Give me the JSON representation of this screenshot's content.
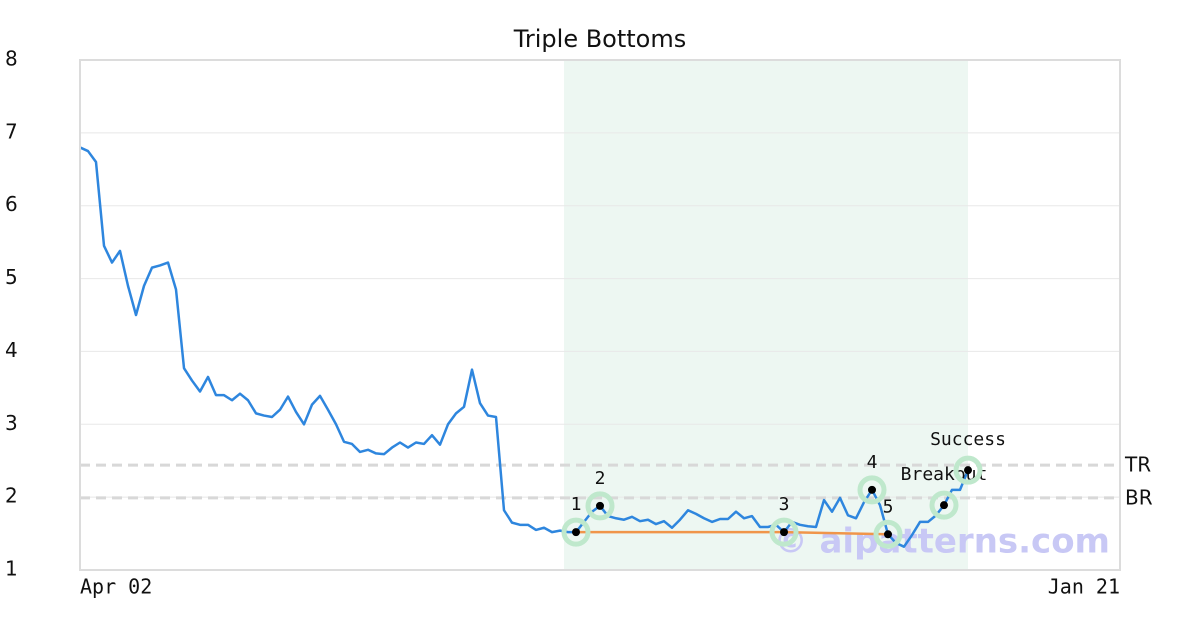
{
  "chart_data": {
    "type": "line",
    "title": "Triple Bottoms",
    "categories": [
      "Apr 02",
      null,
      null,
      null,
      null,
      null,
      null,
      null,
      null,
      null,
      null,
      null,
      null,
      null,
      null,
      null,
      null,
      null,
      null,
      null,
      null,
      null,
      null,
      null,
      null,
      null,
      null,
      null,
      null,
      null,
      null,
      null,
      null,
      null,
      null,
      null,
      null,
      null,
      null,
      null,
      null,
      null,
      null,
      null,
      null,
      null,
      null,
      null,
      null,
      null,
      null,
      null,
      null,
      null,
      null,
      null,
      null,
      null,
      null,
      null,
      null,
      null,
      null,
      null,
      null,
      null,
      null,
      null,
      null,
      null,
      null,
      null,
      null,
      null,
      null,
      null,
      null,
      null,
      null,
      null,
      null,
      null,
      null,
      null,
      null,
      null,
      null,
      null,
      null,
      null,
      null,
      null,
      null,
      null,
      null,
      null,
      null,
      null,
      null,
      null,
      null,
      null,
      null,
      null,
      null,
      null,
      null,
      null,
      null,
      null,
      null,
      null,
      null,
      null,
      null,
      null,
      null,
      null,
      null,
      null,
      null,
      null,
      null,
      null,
      null,
      null,
      null,
      null,
      null,
      null,
      "Jan 21"
    ],
    "series": [
      {
        "color": "#2e86de",
        "values": [
          6.8,
          6.75,
          6.6,
          5.45,
          5.22,
          5.38,
          4.9,
          4.5,
          4.9,
          5.15,
          5.18,
          5.22,
          4.85,
          3.77,
          3.6,
          3.45,
          3.65,
          3.4,
          3.4,
          3.33,
          3.42,
          3.33,
          3.15,
          3.12,
          3.1,
          3.2,
          3.38,
          3.17,
          3.0,
          3.27,
          3.39,
          3.2,
          3.0,
          2.76,
          2.73,
          2.62,
          2.65,
          2.6,
          2.59,
          2.68,
          2.75,
          2.68,
          2.75,
          2.73,
          2.85,
          2.72,
          3.0,
          3.15,
          3.24,
          3.75,
          3.29,
          3.12,
          3.1,
          1.82,
          1.65,
          1.62,
          1.62,
          1.55,
          1.58,
          1.52,
          1.54,
          1.52,
          1.52,
          1.66,
          1.8,
          1.88,
          1.74,
          1.71,
          1.69,
          1.73,
          1.67,
          1.69,
          1.63,
          1.67,
          1.58,
          1.69,
          1.82,
          1.77,
          1.71,
          1.66,
          1.7,
          1.7,
          1.8,
          1.71,
          1.74,
          1.59,
          1.59,
          1.62,
          1.52,
          1.66,
          1.62,
          1.6,
          1.59,
          1.96,
          1.8,
          1.99,
          1.75,
          1.71,
          1.93,
          2.1,
          1.89,
          1.49,
          1.37,
          1.32,
          1.48,
          1.66,
          1.66,
          1.75,
          1.89,
          2.1,
          2.1,
          2.37,
          null,
          null,
          null,
          null,
          null,
          null,
          null,
          null,
          null,
          null,
          null,
          null,
          null,
          null,
          null,
          null,
          null,
          null,
          null
        ]
      }
    ],
    "ylim": [
      1,
      8
    ],
    "yticks": [
      1,
      2,
      3,
      4,
      5,
      6,
      7,
      8
    ],
    "grid": true,
    "highlight_range": [
      60.5,
      111
    ],
    "highlight_color": "#edf7f2",
    "levels": [
      {
        "label": "TR",
        "value": 2.44
      },
      {
        "label": "BR",
        "value": 1.99
      }
    ],
    "points": [
      {
        "label": "1",
        "index": 62
      },
      {
        "label": "2",
        "index": 65
      },
      {
        "label": "3",
        "index": 88
      },
      {
        "label": "4",
        "index": 99
      },
      {
        "label": "5",
        "index": 101
      },
      {
        "label": "Breakout",
        "index": 108
      },
      {
        "label": "Success",
        "index": 111
      }
    ],
    "bottom_line_color": "#f0954a",
    "point_halo_color": "#bfe8cc",
    "watermark": "© aipatterns.com"
  }
}
